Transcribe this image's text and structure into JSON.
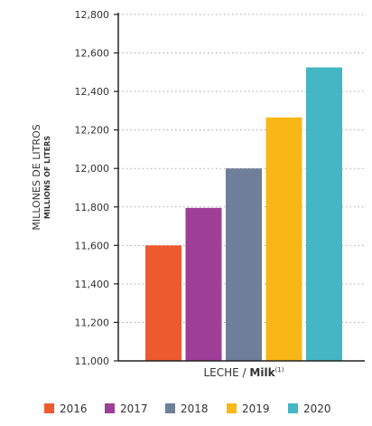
{
  "chart_data": {
    "type": "bar",
    "categories": [
      "2016",
      "2017",
      "2018",
      "2019",
      "2020"
    ],
    "values": [
      11600,
      11795,
      12000,
      12265,
      12525
    ],
    "colors": [
      "#ee5a2f",
      "#9e3e97",
      "#6f7f99",
      "#f8b717",
      "#45b6c4"
    ],
    "ylim": [
      11000,
      12800
    ],
    "yticks": [
      "12,800",
      "12,600",
      "12,400",
      "12,200",
      "12,000",
      "11,800",
      "11,600",
      "11,400",
      "11,200",
      "11,000"
    ],
    "ylabel_main": "MILLONES DE LITROS",
    "ylabel_sub": "MILLIONS OF LITERS",
    "xlabel_main": "LECHE / ",
    "xlabel_bold": "Milk",
    "xlabel_sup": "(1)",
    "grid": true,
    "legend": "bottom",
    "legend_entries": [
      "2016",
      "2017",
      "2018",
      "2019",
      "2020"
    ]
  }
}
